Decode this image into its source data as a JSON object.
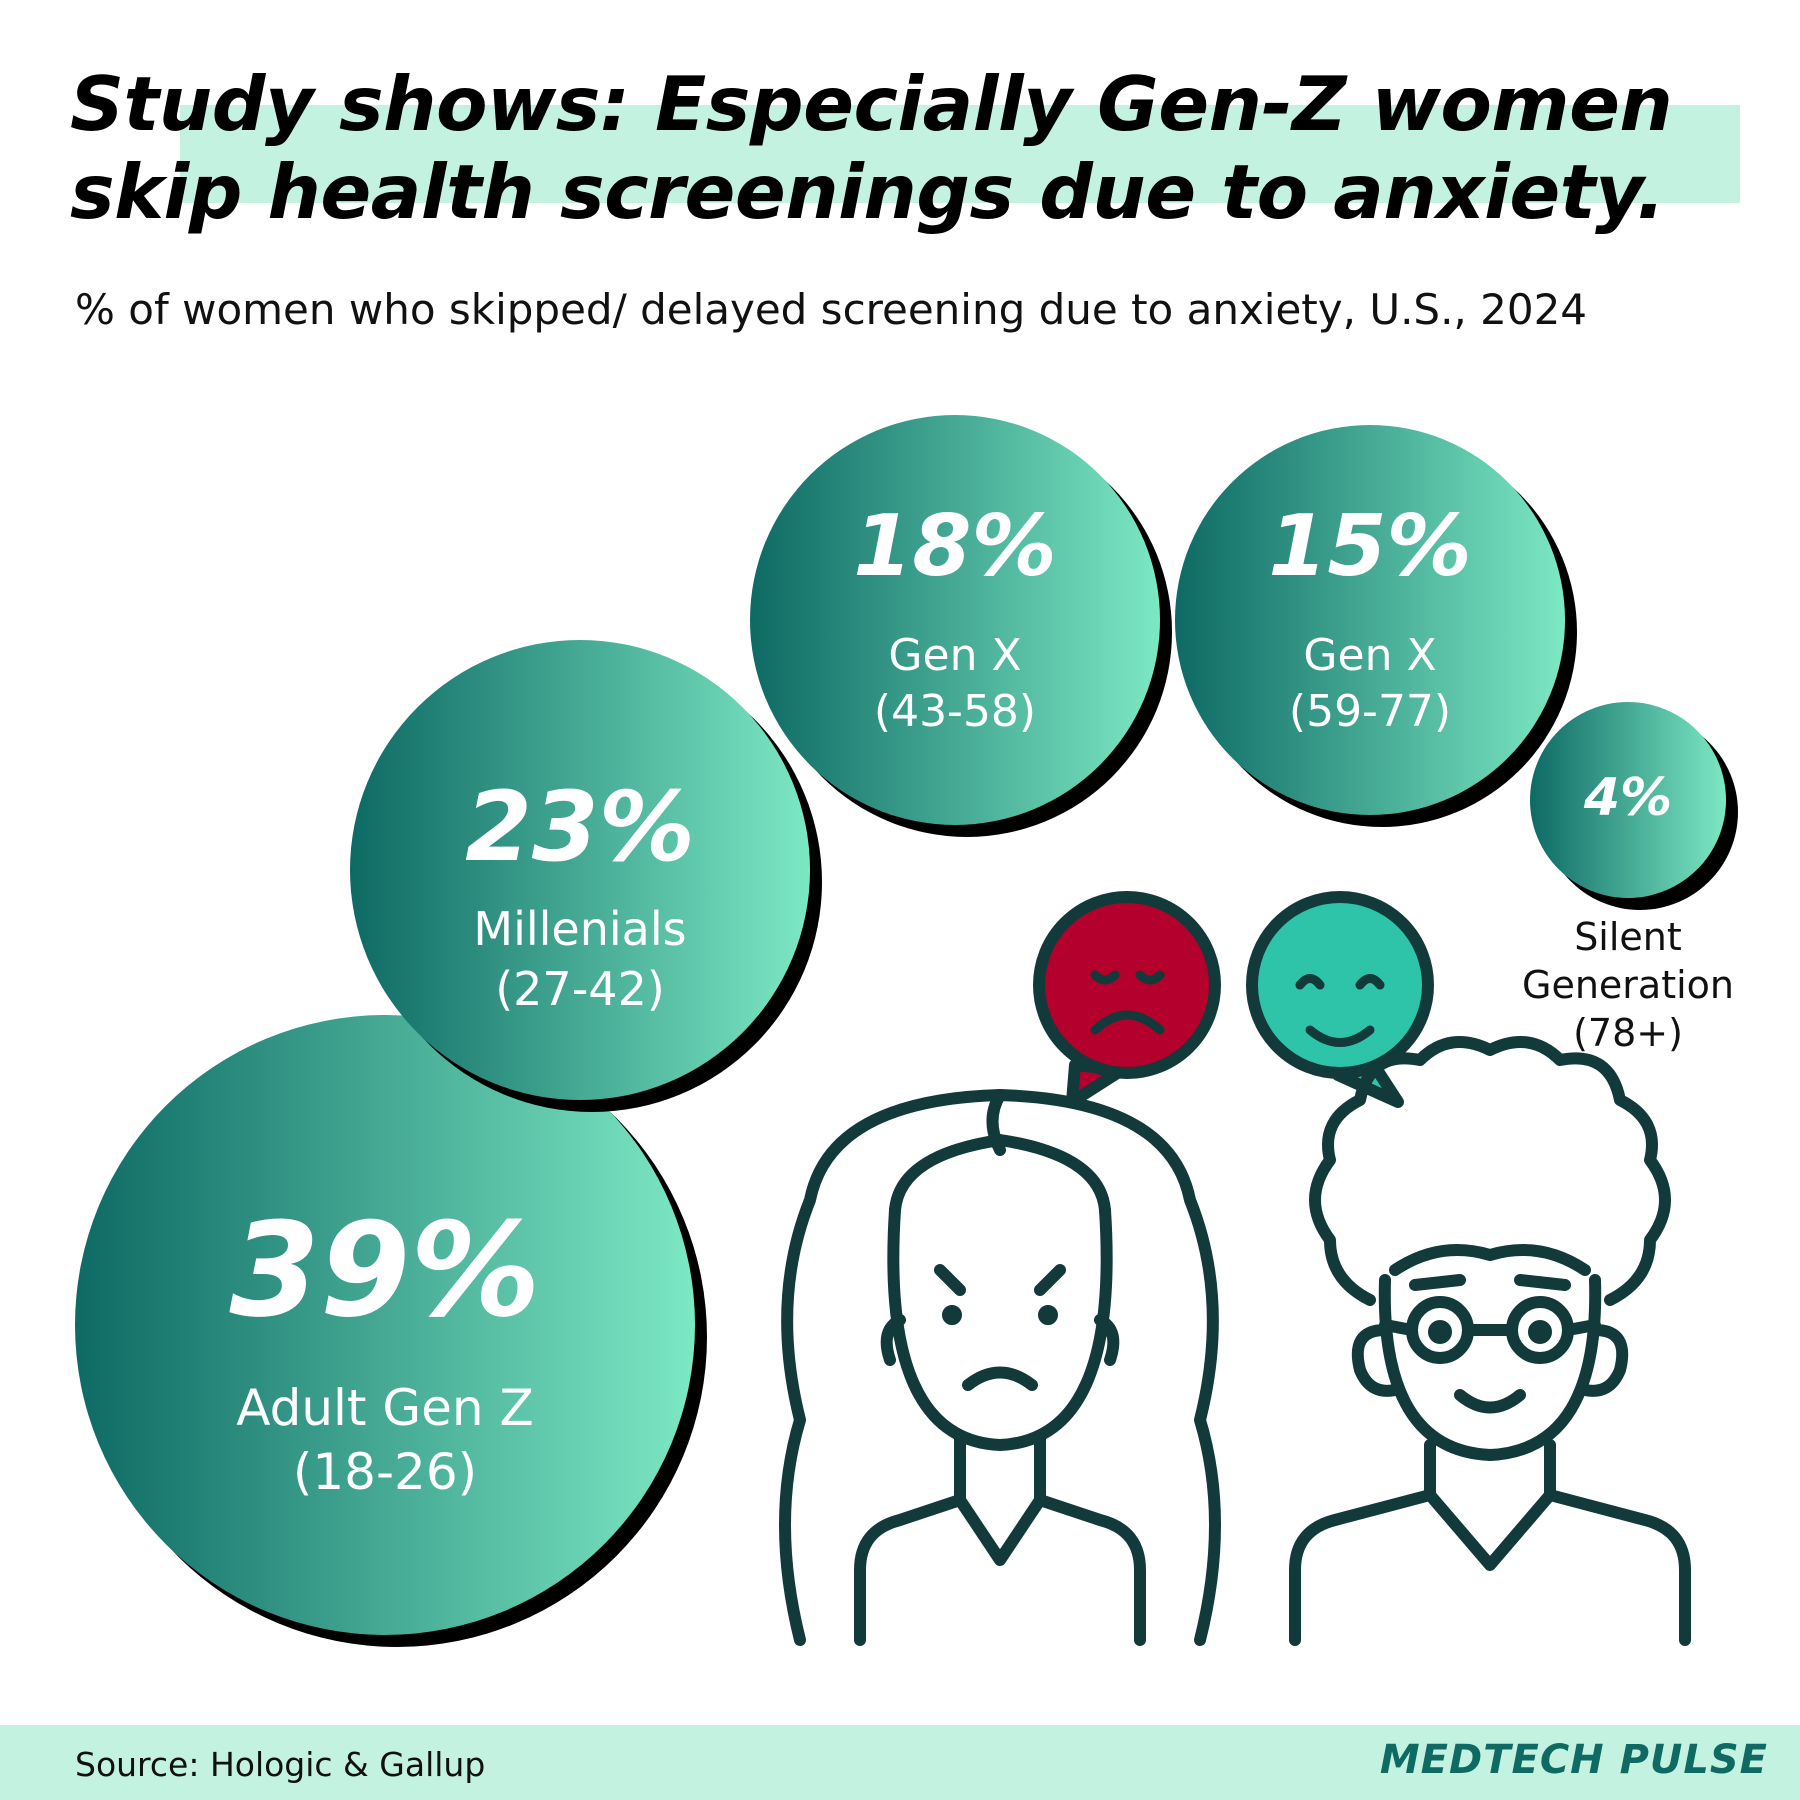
{
  "header": {
    "title_line1": "Study shows: Especially Gen-Z women",
    "title_line2": "skip health screenings due to anxiety.",
    "subtitle": "% of women who skipped/ delayed screening due to anxiety, U.S., 2024"
  },
  "chart_data": {
    "type": "bubble",
    "title": "Study shows: Especially Gen-Z women skip health screenings due to anxiety.",
    "subtitle": "% of women who skipped/ delayed screening due to anxiety, U.S., 2024",
    "unit": "%",
    "points": [
      {
        "value": 39,
        "label": "39%",
        "group": "Adult Gen Z",
        "ages": "(18-26)"
      },
      {
        "value": 23,
        "label": "23%",
        "group": "Millenials",
        "ages": "(27-42)"
      },
      {
        "value": 18,
        "label": "18%",
        "group": "Gen X",
        "ages": "(43-58)"
      },
      {
        "value": 15,
        "label": "15%",
        "group": "Gen X",
        "ages": "(59-77)"
      },
      {
        "value": 4,
        "label": "4%",
        "group": "Silent Generation",
        "ages": "(78+)"
      }
    ]
  },
  "colors": {
    "bubble_dark": "#0d6a64",
    "bubble_light": "#7de8c4",
    "highlight": "#c4f2e0",
    "sad_face": "#b3002d",
    "happy_face": "#2ec4a9",
    "outline": "#123a3a",
    "brand": "#0e6a62"
  },
  "icons": [
    "sad-face-bubble-icon",
    "happy-face-bubble-icon",
    "anxious-woman-icon",
    "smiling-elderly-woman-icon"
  ],
  "footer": {
    "source": "Source: Hologic & Gallup",
    "brand": "MEDTECH PULSE"
  }
}
